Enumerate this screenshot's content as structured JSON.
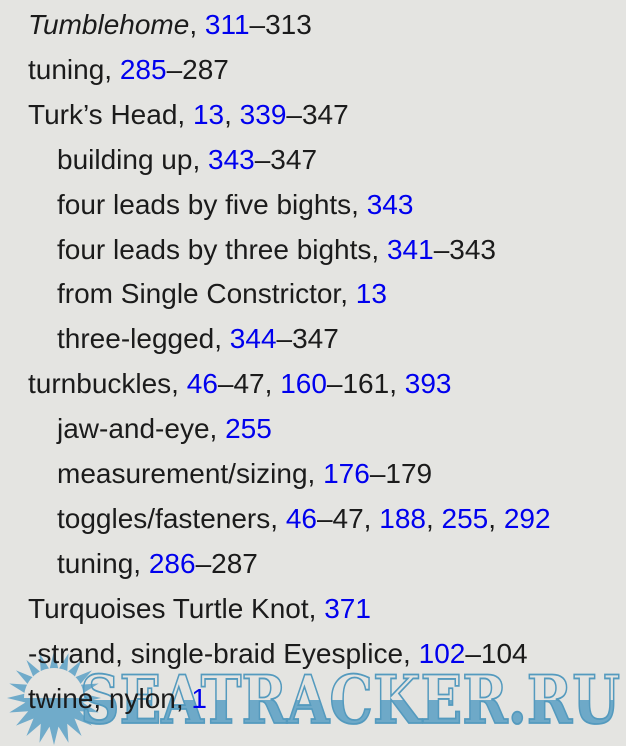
{
  "page": {
    "background_color": "#e4e4e1",
    "text_color": "#1b1b1b",
    "link_color": "#0000ee"
  },
  "index": {
    "entries": [
      {
        "indent": 0,
        "segments": [
          {
            "text": "Tumblehome",
            "style": "italic"
          },
          {
            "text": ", ",
            "style": "text"
          },
          {
            "text": "311",
            "style": "link"
          },
          {
            "text": "–313",
            "style": "text"
          }
        ]
      },
      {
        "indent": 0,
        "segments": [
          {
            "text": "tuning, ",
            "style": "text"
          },
          {
            "text": "285",
            "style": "link"
          },
          {
            "text": "–287",
            "style": "text"
          }
        ]
      },
      {
        "indent": 0,
        "segments": [
          {
            "text": "Turk’s Head, ",
            "style": "text"
          },
          {
            "text": "13",
            "style": "link"
          },
          {
            "text": ", ",
            "style": "text"
          },
          {
            "text": "339",
            "style": "link"
          },
          {
            "text": "–347",
            "style": "text"
          }
        ]
      },
      {
        "indent": 1,
        "segments": [
          {
            "text": "building up, ",
            "style": "text"
          },
          {
            "text": "343",
            "style": "link"
          },
          {
            "text": "–347",
            "style": "text"
          }
        ]
      },
      {
        "indent": 1,
        "segments": [
          {
            "text": "four leads by five bights, ",
            "style": "text"
          },
          {
            "text": "343",
            "style": "link"
          }
        ]
      },
      {
        "indent": 1,
        "segments": [
          {
            "text": "four leads by three bights, ",
            "style": "text"
          },
          {
            "text": "341",
            "style": "link"
          },
          {
            "text": "–343",
            "style": "text"
          }
        ]
      },
      {
        "indent": 1,
        "segments": [
          {
            "text": "from Single Constrictor, ",
            "style": "text"
          },
          {
            "text": "13",
            "style": "link"
          }
        ]
      },
      {
        "indent": 1,
        "segments": [
          {
            "text": "three-legged, ",
            "style": "text"
          },
          {
            "text": "344",
            "style": "link"
          },
          {
            "text": "–347",
            "style": "text"
          }
        ]
      },
      {
        "indent": 0,
        "segments": [
          {
            "text": "turnbuckles, ",
            "style": "text"
          },
          {
            "text": "46",
            "style": "link"
          },
          {
            "text": "–47, ",
            "style": "text"
          },
          {
            "text": "160",
            "style": "link"
          },
          {
            "text": "–161, ",
            "style": "text"
          },
          {
            "text": "393",
            "style": "link"
          }
        ]
      },
      {
        "indent": 1,
        "segments": [
          {
            "text": "jaw-and-eye, ",
            "style": "text"
          },
          {
            "text": "255",
            "style": "link"
          }
        ]
      },
      {
        "indent": 1,
        "segments": [
          {
            "text": "measurement/sizing, ",
            "style": "text"
          },
          {
            "text": "176",
            "style": "link"
          },
          {
            "text": "–179",
            "style": "text"
          }
        ]
      },
      {
        "indent": 1,
        "segments": [
          {
            "text": "toggles/fasteners, ",
            "style": "text"
          },
          {
            "text": "46",
            "style": "link"
          },
          {
            "text": "–47, ",
            "style": "text"
          },
          {
            "text": "188",
            "style": "link"
          },
          {
            "text": ", ",
            "style": "text"
          },
          {
            "text": "255",
            "style": "link"
          },
          {
            "text": ", ",
            "style": "text"
          },
          {
            "text": "292",
            "style": "link"
          }
        ]
      },
      {
        "indent": 1,
        "segments": [
          {
            "text": "tuning, ",
            "style": "text"
          },
          {
            "text": "286",
            "style": "link"
          },
          {
            "text": "–287",
            "style": "text"
          }
        ]
      },
      {
        "indent": 0,
        "segments": [
          {
            "text": "Turquoises Turtle Knot, ",
            "style": "text"
          },
          {
            "text": "371",
            "style": "link"
          }
        ]
      },
      {
        "indent": 0,
        "segments": [
          {
            "text": "-strand, single-braid Eyesplice, ",
            "style": "text"
          },
          {
            "text": "102",
            "style": "link"
          },
          {
            "text": "–104",
            "style": "text"
          }
        ]
      },
      {
        "indent": 0,
        "segments": [
          {
            "text": "twine, nylon, ",
            "style": "text"
          },
          {
            "text": "1",
            "style": "link"
          }
        ]
      }
    ]
  },
  "watermark": {
    "text": "SEATRACKER.RU",
    "fill_color": "#68a6c7",
    "outline_color": "#4d97bd",
    "sun_color": "#6aa8c9",
    "icon": "sun-burst-icon"
  }
}
